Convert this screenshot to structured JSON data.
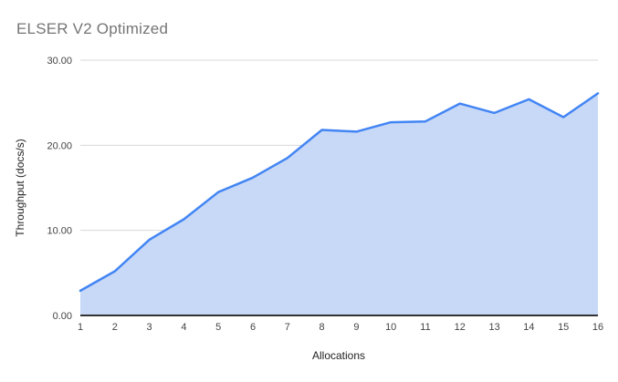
{
  "chart_data": {
    "type": "area",
    "title": "ELSER V2 Optimized",
    "xlabel": "Allocations",
    "ylabel": "Throughput (docs/s)",
    "x": [
      1,
      2,
      3,
      4,
      5,
      6,
      7,
      8,
      9,
      10,
      11,
      12,
      13,
      14,
      15,
      16
    ],
    "values": [
      2.9,
      5.2,
      8.9,
      11.3,
      14.5,
      16.2,
      18.5,
      21.8,
      21.6,
      22.7,
      22.8,
      24.9,
      23.8,
      25.4,
      23.3,
      26.1
    ],
    "series_name": "Throughput (docs/s)",
    "ylim": [
      0,
      30
    ],
    "y_ticks": [
      {
        "value": 0,
        "label": "0.00"
      },
      {
        "value": 10,
        "label": "10.00"
      },
      {
        "value": 20,
        "label": "20.00"
      },
      {
        "value": 30,
        "label": "30.00"
      }
    ],
    "x_tick_labels": [
      "1",
      "2",
      "3",
      "4",
      "5",
      "6",
      "7",
      "8",
      "9",
      "10",
      "11",
      "12",
      "13",
      "14",
      "15",
      "16"
    ],
    "grid": true,
    "legend_position": "none",
    "colors": {
      "line": "#4285f4",
      "fill": "#c8d9f7",
      "grid": "#d9d9d9",
      "axis_line": "#333333",
      "title_text": "#757575",
      "tick_text": "#444444",
      "axis_title_text": "#222222",
      "background": "#ffffff"
    }
  }
}
